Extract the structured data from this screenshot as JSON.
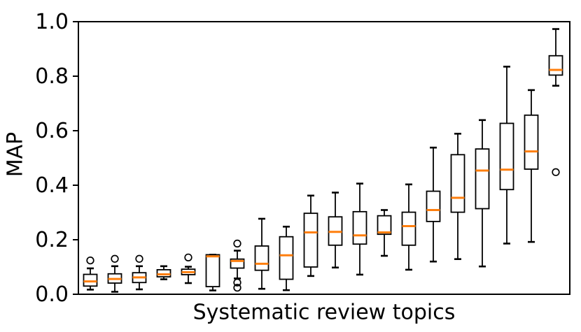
{
  "figure": {
    "background": "#ffffff",
    "frame_color": "#000000"
  },
  "chart_data": {
    "type": "boxplot",
    "title": "",
    "xlabel": "Systematic review topics",
    "ylabel": "MAP",
    "ylim": [
      0.0,
      1.0
    ],
    "yticks": [
      0.0,
      0.2,
      0.4,
      0.6,
      0.8,
      1.0
    ],
    "ytick_labels": [
      "0.0",
      "0.2",
      "0.4",
      "0.6",
      "0.8",
      "1.0"
    ],
    "xtick_labels": [],
    "grid": false,
    "legend": null,
    "n_boxes": 20,
    "colors": {
      "box_stroke": "#000000",
      "whisker": "#000000",
      "cap": "#000000",
      "median": "#ff7f0e",
      "flier_stroke": "#000000",
      "box_fill": "#ffffff"
    },
    "boxes": [
      {
        "whislo": 0.017,
        "q1": 0.03,
        "med": 0.047,
        "q3": 0.073,
        "whishi": 0.095,
        "fliers": [
          0.124
        ]
      },
      {
        "whislo": 0.009,
        "q1": 0.041,
        "med": 0.056,
        "q3": 0.075,
        "whishi": 0.103,
        "fliers": [
          0.13
        ]
      },
      {
        "whislo": 0.018,
        "q1": 0.043,
        "med": 0.062,
        "q3": 0.079,
        "whishi": 0.103,
        "fliers": [
          0.13
        ]
      },
      {
        "whislo": 0.055,
        "q1": 0.064,
        "med": 0.073,
        "q3": 0.09,
        "whishi": 0.103,
        "fliers": []
      },
      {
        "whislo": 0.041,
        "q1": 0.072,
        "med": 0.081,
        "q3": 0.092,
        "whishi": 0.101,
        "fliers": [
          0.135
        ]
      },
      {
        "whislo": 0.014,
        "q1": 0.028,
        "med": 0.139,
        "q3": 0.145,
        "whishi": 0.145,
        "fliers": []
      },
      {
        "whislo": 0.058,
        "q1": 0.096,
        "med": 0.122,
        "q3": 0.129,
        "whishi": 0.16,
        "fliers": [
          0.186,
          0.043,
          0.024
        ]
      },
      {
        "whislo": 0.02,
        "q1": 0.088,
        "med": 0.112,
        "q3": 0.177,
        "whishi": 0.277,
        "fliers": []
      },
      {
        "whislo": 0.015,
        "q1": 0.055,
        "med": 0.143,
        "q3": 0.211,
        "whishi": 0.248,
        "fliers": []
      },
      {
        "whislo": 0.067,
        "q1": 0.1,
        "med": 0.227,
        "q3": 0.297,
        "whishi": 0.362,
        "fliers": []
      },
      {
        "whislo": 0.098,
        "q1": 0.18,
        "med": 0.229,
        "q3": 0.284,
        "whishi": 0.373,
        "fliers": []
      },
      {
        "whislo": 0.072,
        "q1": 0.184,
        "med": 0.216,
        "q3": 0.303,
        "whishi": 0.406,
        "fliers": []
      },
      {
        "whislo": 0.141,
        "q1": 0.22,
        "med": 0.227,
        "q3": 0.288,
        "whishi": 0.309,
        "fliers": []
      },
      {
        "whislo": 0.09,
        "q1": 0.18,
        "med": 0.25,
        "q3": 0.301,
        "whishi": 0.403,
        "fliers": []
      },
      {
        "whislo": 0.12,
        "q1": 0.267,
        "med": 0.309,
        "q3": 0.378,
        "whishi": 0.538,
        "fliers": []
      },
      {
        "whislo": 0.129,
        "q1": 0.301,
        "med": 0.354,
        "q3": 0.512,
        "whishi": 0.589,
        "fliers": []
      },
      {
        "whislo": 0.102,
        "q1": 0.314,
        "med": 0.454,
        "q3": 0.533,
        "whishi": 0.639,
        "fliers": []
      },
      {
        "whislo": 0.186,
        "q1": 0.384,
        "med": 0.457,
        "q3": 0.627,
        "whishi": 0.835,
        "fliers": []
      },
      {
        "whislo": 0.192,
        "q1": 0.459,
        "med": 0.524,
        "q3": 0.657,
        "whishi": 0.749,
        "fliers": []
      },
      {
        "whislo": 0.765,
        "q1": 0.804,
        "med": 0.823,
        "q3": 0.875,
        "whishi": 0.973,
        "fliers": [
          0.448
        ]
      }
    ]
  }
}
